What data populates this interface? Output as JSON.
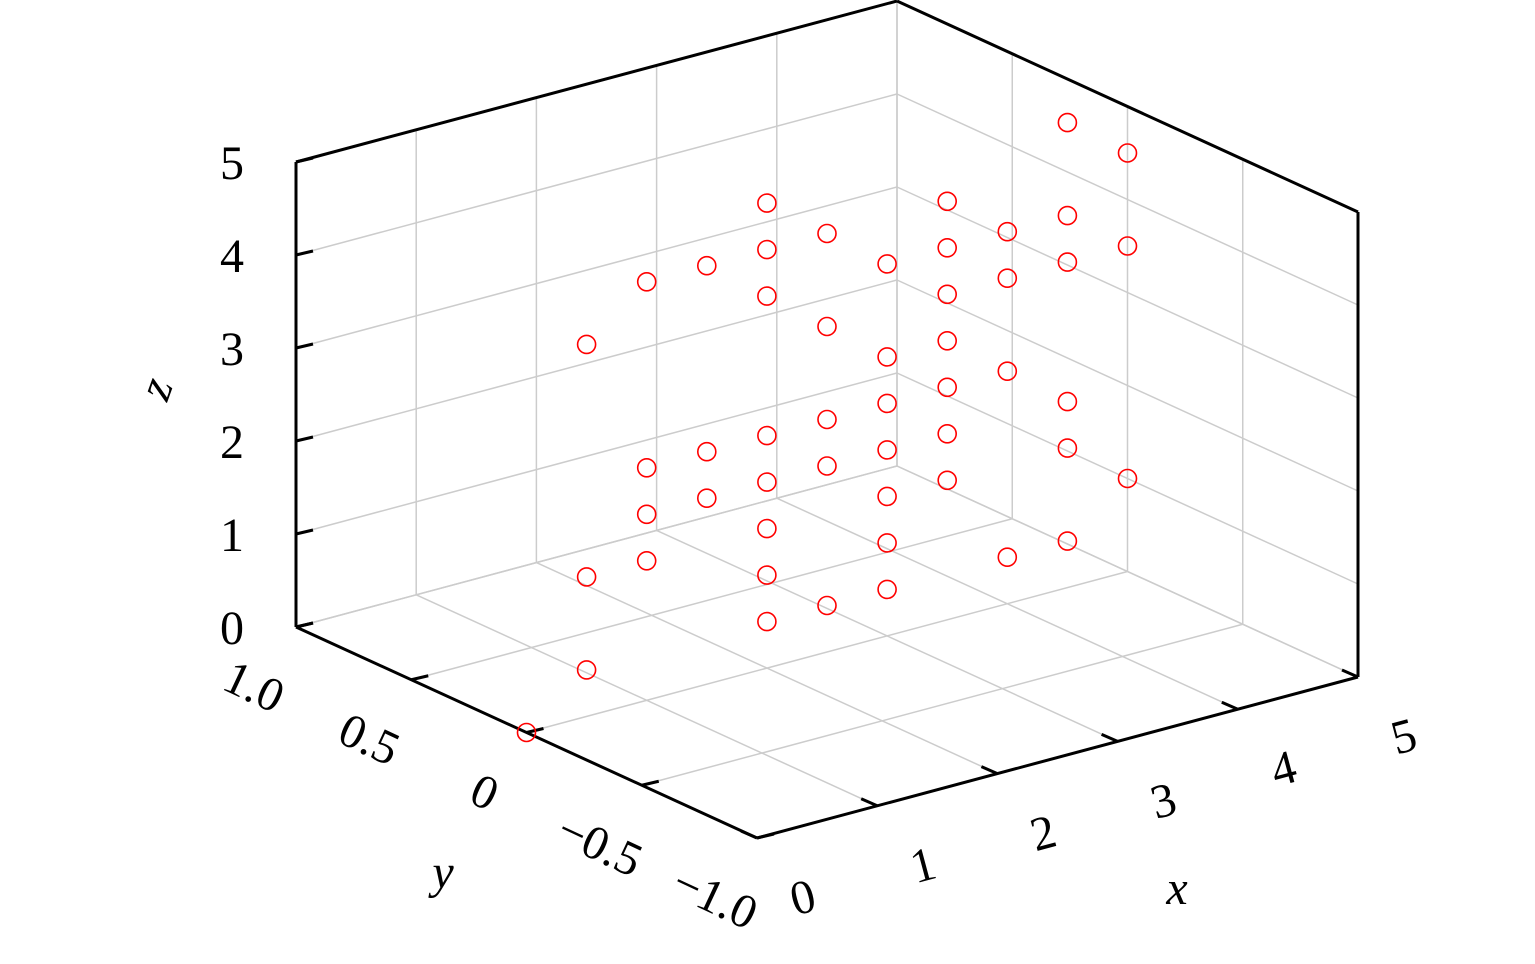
{
  "chart_data": {
    "type": "scatter3d",
    "xlabel": "x",
    "ylabel": "y",
    "zlabel": "z",
    "color": "#ff0000",
    "x": [
      0,
      0.5,
      0.5,
      0.5,
      1,
      1,
      1,
      1,
      1.5,
      1.5,
      1.5,
      2,
      2,
      2,
      2,
      2,
      2,
      2,
      2,
      2.5,
      2.5,
      2.5,
      2.5,
      2.5,
      3,
      3,
      3,
      3,
      3,
      3,
      3,
      3.5,
      3.5,
      3.5,
      3.5,
      3.5,
      3.5,
      3.5,
      4,
      4,
      4,
      4,
      4.5,
      4.5,
      4.5,
      4.5,
      4.5,
      4.5,
      5,
      5,
      5
    ],
    "y": [
      0,
      0,
      0,
      0,
      0,
      0,
      0,
      0,
      0,
      0,
      0,
      0,
      0,
      0,
      0,
      0,
      0,
      0,
      0,
      0,
      0,
      0,
      0,
      0,
      0,
      0,
      0,
      0,
      0,
      0,
      0,
      0,
      0,
      0,
      0,
      0,
      0,
      0,
      0,
      0,
      0,
      0,
      0,
      0,
      0,
      0,
      0,
      0,
      0,
      0,
      0
    ],
    "z": [
      0,
      0.5,
      1.5,
      4,
      1.5,
      2,
      2.5,
      4.5,
      2,
      2.5,
      4.5,
      0.5,
      1,
      1.5,
      2,
      2.5,
      4,
      4.5,
      5,
      0.5,
      2,
      2.5,
      3.5,
      4.5,
      0.5,
      1,
      1.5,
      2,
      2.5,
      3,
      4,
      1.5,
      2,
      2.5,
      3,
      3.5,
      4,
      4.5,
      0.5,
      2.5,
      3.5,
      4,
      0.5,
      1.5,
      2,
      3.5,
      4,
      5,
      1,
      3.5,
      4.5
    ],
    "xlim": [
      0,
      5
    ],
    "ylim": [
      -1,
      1
    ],
    "zlim": [
      0,
      5
    ],
    "xticks": [
      0,
      1,
      2,
      3,
      4,
      5
    ],
    "yticks": [
      {
        "value": -1,
        "label": "−1.0"
      },
      {
        "value": -0.5,
        "label": "−0.5"
      },
      0,
      0.5,
      {
        "value": 1,
        "label": "1.0"
      }
    ],
    "zticks": [
      0,
      1,
      2,
      3,
      4,
      5
    ],
    "grid": true
  }
}
